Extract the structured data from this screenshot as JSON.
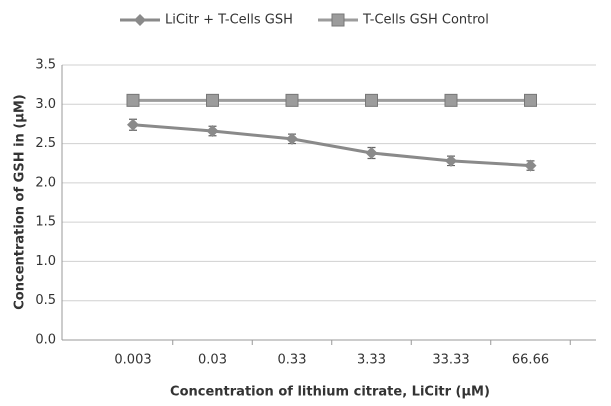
{
  "chart_data": {
    "type": "line",
    "x_label": "Concentration of  lithium citrate, LiCitr (μM)",
    "y_label": "Concentration of GSH in (μM)",
    "categories": [
      "0.003",
      "0.03",
      "0.33",
      "3.33",
      "33.33",
      "66.66"
    ],
    "series": [
      {
        "name": "LiCitr + T-Cells GSH",
        "color": "#8a8a8a",
        "marker": "diamond",
        "values": [
          2.74,
          2.66,
          2.56,
          2.38,
          2.28,
          2.22
        ],
        "errors": [
          0.07,
          0.06,
          0.06,
          0.07,
          0.06,
          0.06
        ]
      },
      {
        "name": "T-Cells GSH Control",
        "color": "#9c9c9c",
        "marker": "square",
        "values": [
          3.05,
          3.05,
          3.05,
          3.05,
          3.05,
          3.05
        ],
        "errors": [
          0.03,
          0.03,
          0.03,
          0.03,
          0.03,
          0.03
        ]
      }
    ],
    "ylim": [
      0,
      3.5
    ],
    "yticks": [
      {
        "value": 0,
        "label": "0.0"
      },
      0.5,
      {
        "value": 1,
        "label": "1.0"
      },
      1.5,
      {
        "value": 2,
        "label": "2.0"
      },
      2.5,
      {
        "value": 3,
        "label": "3.0"
      },
      3.5
    ],
    "grid": true,
    "legend": "top"
  }
}
